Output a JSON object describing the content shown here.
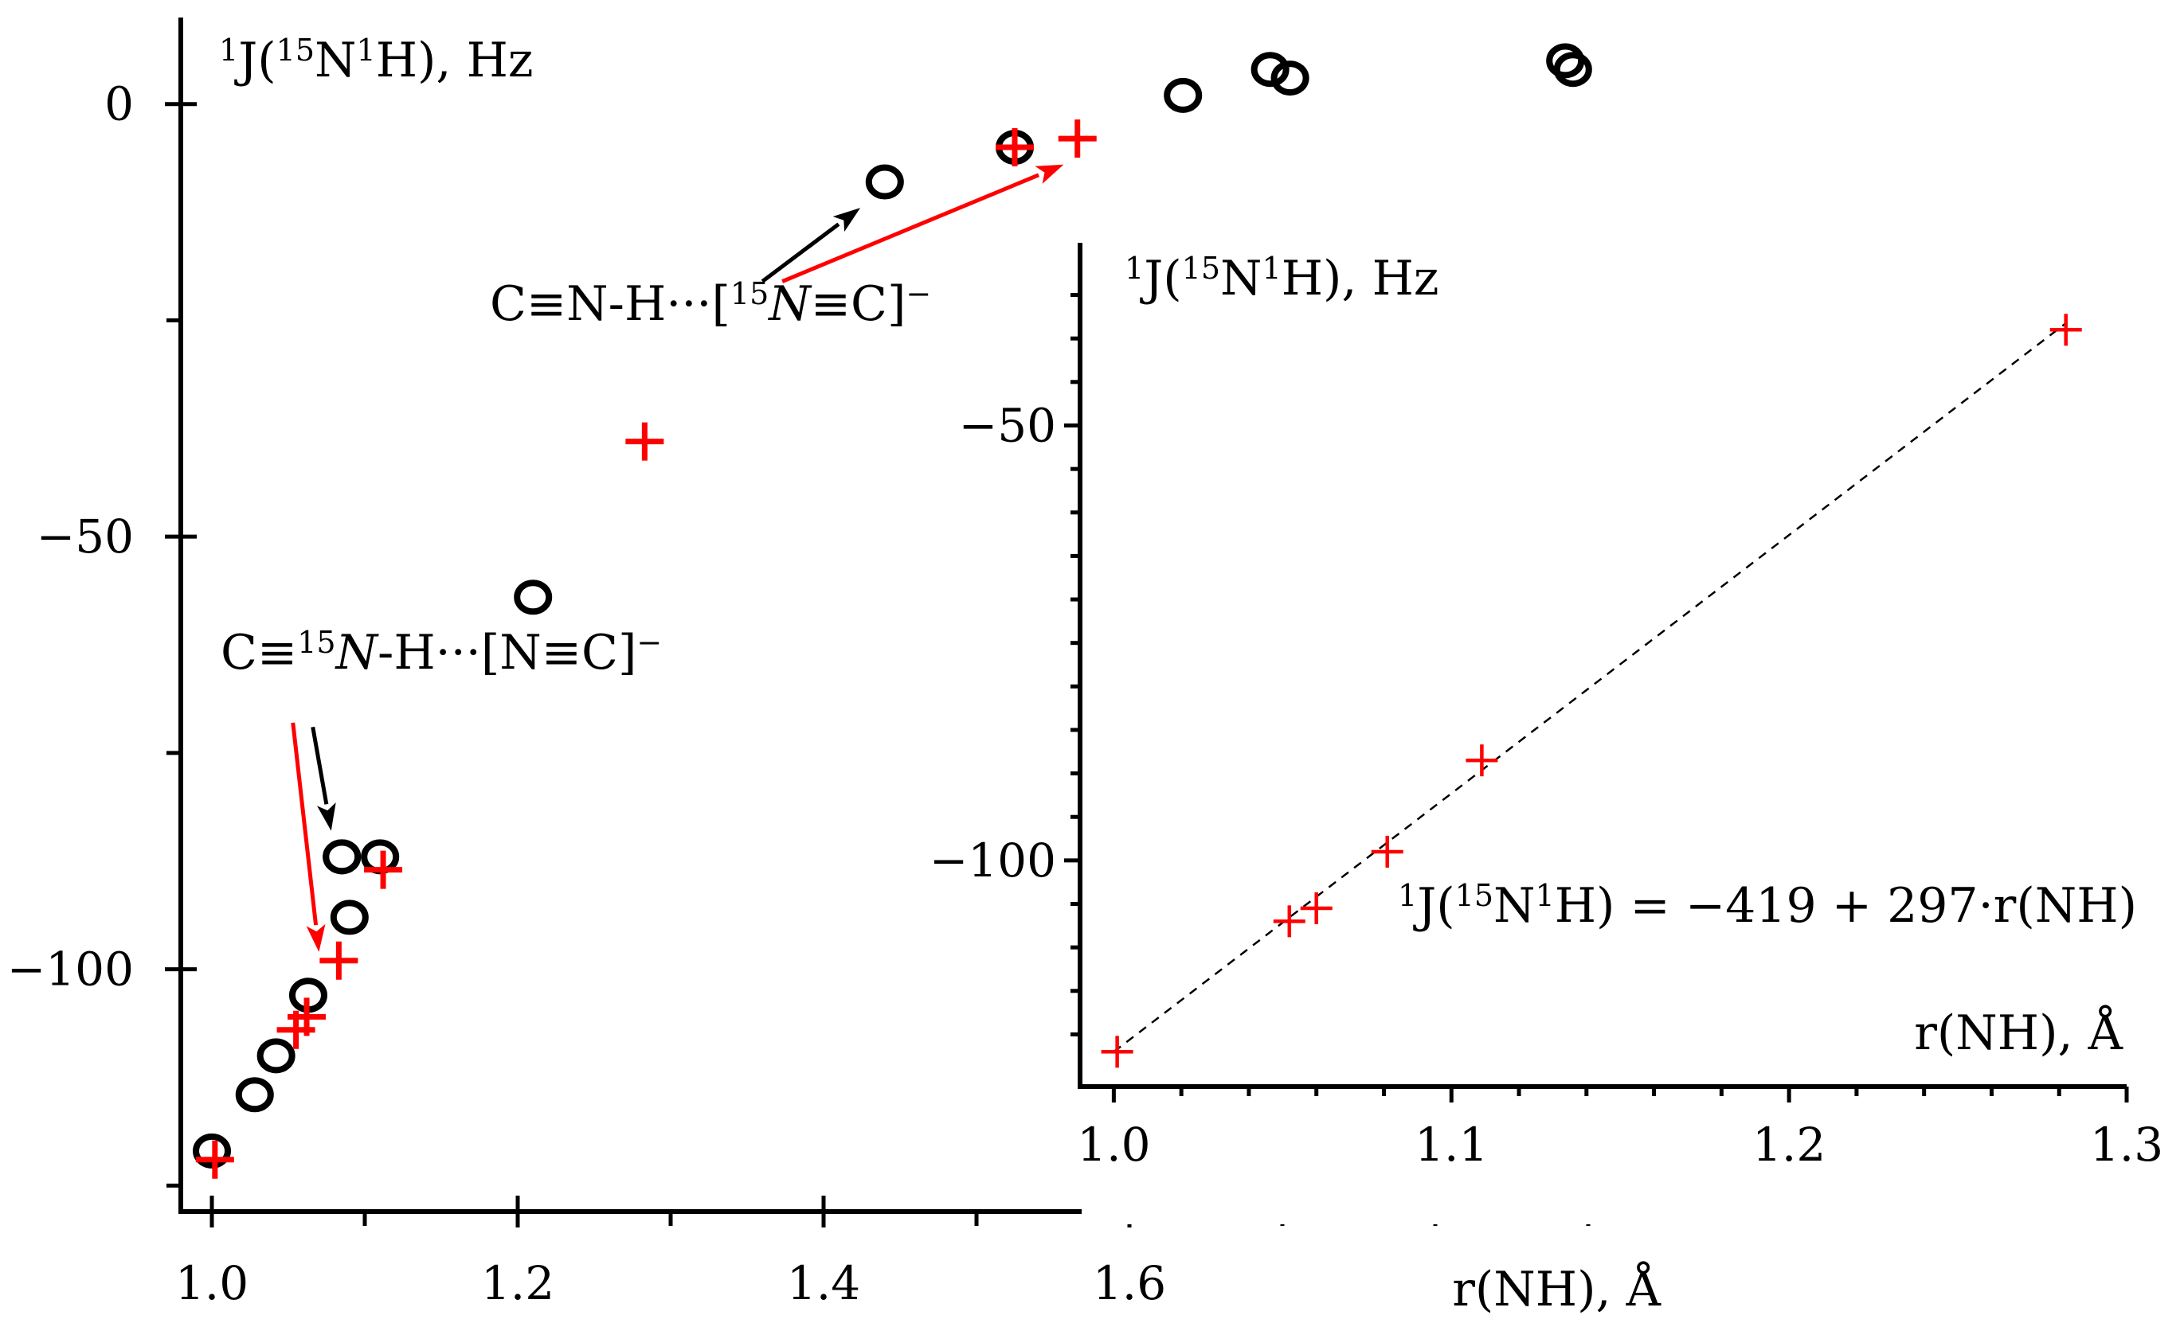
{
  "colors": {
    "circle": "#000000",
    "cross": "#ff0000",
    "arrow_black": "#000000",
    "arrow_red": "#ff0000",
    "fit_line": "#000000",
    "background": "#ffffff"
  },
  "chart_data": [
    {
      "type": "scatter",
      "panel": "main",
      "ylabel": {
        "prefix": "1",
        "mid": "J(",
        "sup2": "15",
        "mid2": "N",
        "sup3": "1",
        "suffix": "H), Hz"
      },
      "xlabel": "r(NH), Å",
      "xlim": [
        0.95,
        1.95
      ],
      "ylim": [
        -128,
        10
      ],
      "xticks": [
        {
          "value": 1.0,
          "label": "1.0"
        },
        {
          "value": 1.2,
          "label": "1.2"
        },
        {
          "value": 1.4,
          "label": "1.4"
        },
        {
          "value": 1.6,
          "label": "1.6"
        }
      ],
      "xminor": [
        1.1,
        1.3,
        1.5,
        1.7,
        1.8,
        1.9
      ],
      "yticks": [
        {
          "value": 0,
          "label": "0"
        },
        {
          "value": -50,
          "label": "−50"
        },
        {
          "value": -100,
          "label": "−100"
        }
      ],
      "yminor": [
        -25,
        -75,
        -125
      ],
      "series": [
        {
          "name": "circles",
          "marker": "circle",
          "x": [
            1.0,
            1.028,
            1.042,
            1.063,
            1.085,
            1.09,
            1.11,
            1.085,
            1.21,
            1.44,
            1.525,
            1.635,
            1.692,
            1.705,
            1.885,
            1.89
          ],
          "y": [
            -121,
            -114.5,
            -110,
            -103,
            -87,
            -94,
            -87,
            -87,
            -57,
            -9,
            -5,
            1,
            4,
            3,
            5,
            4
          ]
        },
        {
          "name": "crosses",
          "marker": "plus",
          "x": [
            1.002,
            1.055,
            1.062,
            1.083,
            1.112,
            1.283,
            1.525,
            1.566
          ],
          "y": [
            -122,
            -107,
            -105.5,
            -99,
            -88.5,
            -39,
            -5,
            -4
          ]
        }
      ],
      "annotations": [
        {
          "id": "upper",
          "parts": [
            "C≡N-H···[",
            "15",
            "N",
            "≡C]",
            "−"
          ],
          "anchor": [
            1.305,
            -25
          ]
        },
        {
          "id": "lower",
          "parts": [
            "C≡",
            "15",
            "N",
            "-H···[N≡C]",
            "−"
          ],
          "anchor": [
            0.975,
            -68.5
          ]
        }
      ],
      "arrows": [
        {
          "color": "black",
          "from": [
            1.36,
            -20.5
          ],
          "to": [
            1.424,
            -12
          ]
        },
        {
          "color": "red",
          "from": [
            1.373,
            -20.5
          ],
          "to": [
            1.557,
            -7
          ]
        },
        {
          "color": "black",
          "from": [
            1.066,
            -72
          ],
          "to": [
            1.078,
            -84
          ]
        },
        {
          "color": "red",
          "from": [
            1.053,
            -71.5
          ],
          "to": [
            1.07,
            -98
          ]
        }
      ]
    },
    {
      "type": "scatter",
      "panel": "inset",
      "ylabel": {
        "prefix": "1",
        "mid": "J(",
        "sup2": "15",
        "mid2": "N",
        "sup3": "1",
        "suffix": "H), Hz"
      },
      "xlabel": "r(NH), Å",
      "xlim": [
        0.99,
        1.3
      ],
      "ylim": [
        -126,
        -29
      ],
      "xticks": [
        {
          "value": 1.0,
          "label": "1.0"
        },
        {
          "value": 1.1,
          "label": "1.1"
        },
        {
          "value": 1.2,
          "label": "1.2"
        },
        {
          "value": 1.3,
          "label": "1.3"
        }
      ],
      "xminor": [
        1.02,
        1.04,
        1.06,
        1.08,
        1.12,
        1.14,
        1.16,
        1.18,
        1.22,
        1.24,
        1.26,
        1.28
      ],
      "yticks": [
        {
          "value": -50,
          "label": "−50"
        },
        {
          "value": -100,
          "label": "−100"
        }
      ],
      "yminor": [
        -35,
        -40,
        -45,
        -55,
        -60,
        -65,
        -70,
        -75,
        -80,
        -85,
        -90,
        -95,
        -105,
        -110,
        -115,
        -120
      ],
      "series": [
        {
          "name": "crosses",
          "marker": "plus",
          "x": [
            1.001,
            1.052,
            1.06,
            1.081,
            1.109,
            1.282
          ],
          "y": [
            -122,
            -107,
            -105.5,
            -99,
            -88.5,
            -39
          ]
        }
      ],
      "fit": {
        "equation_parts": [
          "1",
          "J(",
          "15",
          "N",
          "1",
          "H) = −419 + 297·r(NH)"
        ],
        "intercept": -419,
        "slope": 297,
        "x_range": [
          1.0,
          1.282
        ],
        "style": "dashed"
      }
    }
  ]
}
